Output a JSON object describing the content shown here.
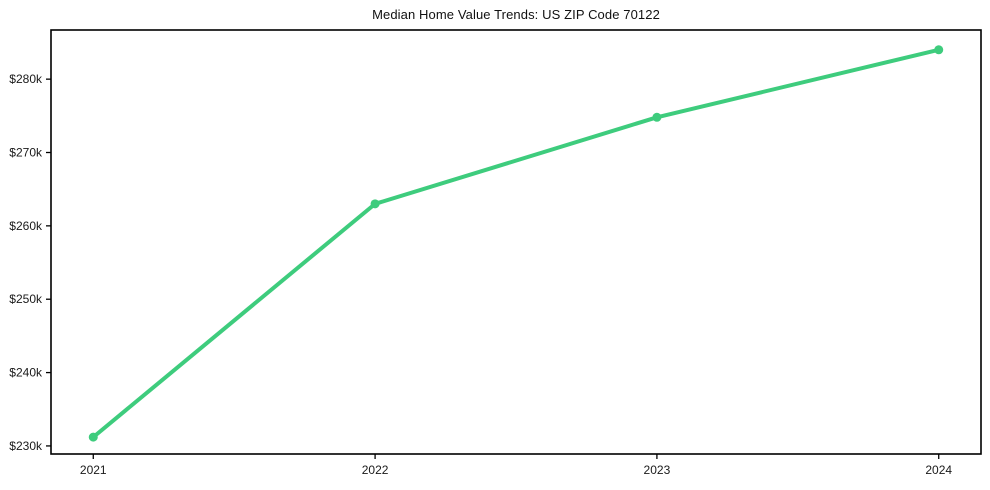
{
  "chart_data": {
    "type": "line",
    "title": "Median Home Value Trends: US ZIP Code 70122",
    "xlabel": "",
    "ylabel": "",
    "x": [
      2021,
      2022,
      2023,
      2024
    ],
    "series": [
      {
        "name": "Median Home Value",
        "values": [
          231200,
          263000,
          274800,
          284000
        ]
      }
    ],
    "xticks": [
      {
        "value": 2021,
        "label": "2021"
      },
      {
        "value": 2022,
        "label": "2022"
      },
      {
        "value": 2023,
        "label": "2023"
      },
      {
        "value": 2024,
        "label": "2024"
      }
    ],
    "yticks": [
      {
        "value": 230000,
        "label": "$230k"
      },
      {
        "value": 240000,
        "label": "$240k"
      },
      {
        "value": 250000,
        "label": "$250k"
      },
      {
        "value": 260000,
        "label": "$260k"
      },
      {
        "value": 270000,
        "label": "$270k"
      },
      {
        "value": 280000,
        "label": "$280k"
      }
    ],
    "xlim": [
      2020.85,
      2024.15
    ],
    "ylim": [
      228900,
      286700
    ],
    "grid": false,
    "legend": "none",
    "colors": {
      "line": "#3ecc7d",
      "marker": "#3ecc7d",
      "frame": "#000000",
      "text": "#1a1a1a",
      "background": "#ffffff"
    }
  }
}
